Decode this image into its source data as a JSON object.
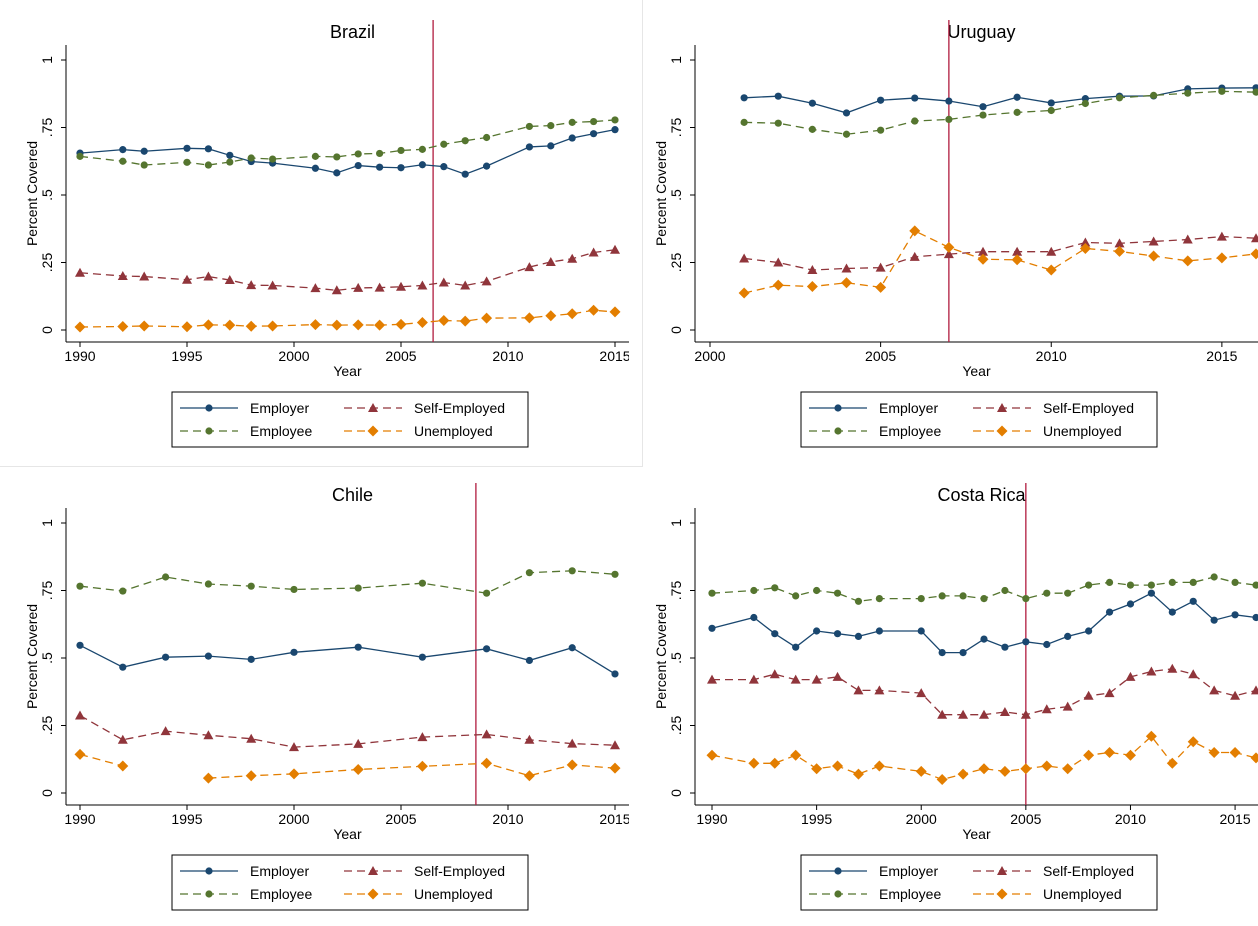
{
  "colors": {
    "employer": "#1a476f",
    "employee": "#55752f",
    "self_employed": "#90353b",
    "unemployed": "#e37e00",
    "reference_line": "#b01c3f"
  },
  "legend_labels": {
    "employer": "Employer",
    "self_employed": "Self-Employed",
    "employee": "Employee",
    "unemployed": "Unemployed"
  },
  "chart_data": [
    {
      "type": "line",
      "title": "Brazil",
      "xlabel": "Year",
      "ylabel": "Percent Covered",
      "xlim": [
        1990,
        2015
      ],
      "ylim": [
        0,
        1
      ],
      "xticks": [
        "1990",
        "1995",
        "2000",
        "2005",
        "2010",
        "2015"
      ],
      "yticks": [
        "0",
        ".25",
        ".5",
        ".75",
        "1"
      ],
      "reference_line_x": 2006.5,
      "x": [
        1990,
        1992,
        1993,
        1995,
        1996,
        1997,
        1998,
        1999,
        2001,
        2002,
        2003,
        2004,
        2005,
        2006,
        2007,
        2008,
        2009,
        2011,
        2012,
        2013,
        2014,
        2015
      ],
      "series": [
        {
          "name": "Employer",
          "values": [
            0.655,
            0.668,
            0.662,
            0.673,
            0.671,
            0.647,
            0.624,
            0.618,
            0.599,
            0.582,
            0.609,
            0.603,
            0.601,
            0.612,
            0.605,
            0.577,
            0.607,
            0.678,
            0.682,
            0.711,
            0.727,
            0.742
          ]
        },
        {
          "name": "Employee",
          "values": [
            0.643,
            0.625,
            0.611,
            0.621,
            0.611,
            0.622,
            0.637,
            0.633,
            0.643,
            0.641,
            0.652,
            0.654,
            0.665,
            0.669,
            0.688,
            0.701,
            0.713,
            0.754,
            0.757,
            0.769,
            0.772,
            0.778
          ]
        },
        {
          "name": "Self-Employed",
          "values": [
            0.212,
            0.2,
            0.198,
            0.186,
            0.198,
            0.185,
            0.166,
            0.165,
            0.155,
            0.147,
            0.156,
            0.157,
            0.16,
            0.165,
            0.176,
            0.165,
            0.18,
            0.233,
            0.252,
            0.264,
            0.287,
            0.297
          ]
        },
        {
          "name": "Unemployed",
          "values": [
            0.011,
            0.013,
            0.015,
            0.012,
            0.019,
            0.018,
            0.014,
            0.015,
            0.02,
            0.018,
            0.019,
            0.018,
            0.021,
            0.028,
            0.035,
            0.033,
            0.044,
            0.045,
            0.053,
            0.06,
            0.073,
            0.067
          ]
        }
      ]
    },
    {
      "type": "line",
      "title": "Uruguay",
      "xlabel": "Year",
      "ylabel": "Percent Covered",
      "xlim": [
        2000,
        2016
      ],
      "ylim": [
        0,
        1
      ],
      "xticks": [
        "2000",
        "2005",
        "2010",
        "2015"
      ],
      "yticks": [
        "0",
        ".25",
        ".5",
        ".75",
        "1"
      ],
      "reference_line_x": 2007,
      "x": [
        2001,
        2002,
        2003,
        2004,
        2005,
        2006,
        2007,
        2008,
        2009,
        2010,
        2011,
        2012,
        2013,
        2014,
        2015,
        2016
      ],
      "series": [
        {
          "name": "Employer",
          "values": [
            0.86,
            0.866,
            0.84,
            0.804,
            0.851,
            0.859,
            0.848,
            0.827,
            0.862,
            0.841,
            0.857,
            0.866,
            0.867,
            0.893,
            0.896,
            0.897
          ]
        },
        {
          "name": "Employee",
          "values": [
            0.769,
            0.766,
            0.743,
            0.725,
            0.74,
            0.774,
            0.78,
            0.796,
            0.806,
            0.813,
            0.839,
            0.86,
            0.869,
            0.877,
            0.884,
            0.881
          ]
        },
        {
          "name": "Self-Employed",
          "values": [
            0.265,
            0.25,
            0.222,
            0.228,
            0.231,
            0.271,
            0.281,
            0.29,
            0.29,
            0.29,
            0.324,
            0.321,
            0.328,
            0.335,
            0.346,
            0.34
          ]
        },
        {
          "name": "Unemployed",
          "values": [
            0.137,
            0.166,
            0.161,
            0.175,
            0.158,
            0.367,
            0.306,
            0.262,
            0.26,
            0.222,
            0.302,
            0.291,
            0.274,
            0.256,
            0.267,
            0.282
          ]
        }
      ]
    },
    {
      "type": "line",
      "title": "Chile",
      "xlabel": "Year",
      "ylabel": "Percent Covered",
      "xlim": [
        1990,
        2015
      ],
      "ylim": [
        0,
        1
      ],
      "xticks": [
        "1990",
        "1995",
        "2000",
        "2005",
        "2010",
        "2015"
      ],
      "yticks": [
        "0",
        ".25",
        ".5",
        ".75",
        "1"
      ],
      "reference_line_x": 2008.5,
      "x": [
        1990,
        1992,
        1994,
        1996,
        1998,
        2000,
        2003,
        2006,
        2009,
        2011,
        2013,
        2015
      ],
      "series": [
        {
          "name": "Employer",
          "values": [
            0.547,
            0.466,
            0.503,
            0.507,
            0.495,
            0.521,
            0.54,
            0.503,
            0.534,
            0.491,
            0.538,
            0.441
          ]
        },
        {
          "name": "Employee",
          "values": [
            0.766,
            0.748,
            0.8,
            0.774,
            0.766,
            0.754,
            0.759,
            0.777,
            0.74,
            0.816,
            0.823,
            0.81
          ]
        },
        {
          "name": "Self-Employed",
          "values": [
            0.287,
            0.197,
            0.229,
            0.214,
            0.201,
            0.17,
            0.182,
            0.207,
            0.217,
            0.197,
            0.183,
            0.177
          ]
        },
        {
          "name": "Unemployed",
          "values": [
            0.143,
            0.1,
            null,
            0.055,
            0.064,
            0.071,
            0.087,
            0.099,
            0.11,
            0.064,
            0.104,
            0.092
          ]
        }
      ]
    },
    {
      "type": "line",
      "title": "Costa Rica",
      "xlabel": "Year",
      "ylabel": "Percent Covered",
      "xlim": [
        1990,
        2016
      ],
      "ylim": [
        0,
        1
      ],
      "xticks": [
        "1990",
        "1995",
        "2000",
        "2005",
        "2010",
        "2015"
      ],
      "yticks": [
        "0",
        ".25",
        ".5",
        ".75",
        "1"
      ],
      "reference_line_x": 2005,
      "x": [
        1990,
        1992,
        1993,
        1994,
        1995,
        1996,
        1997,
        1998,
        2000,
        2001,
        2002,
        2003,
        2004,
        2005,
        2006,
        2007,
        2008,
        2009,
        2010,
        2011,
        2012,
        2013,
        2014,
        2015,
        2016
      ],
      "series": [
        {
          "name": "Employer",
          "values": [
            0.61,
            0.65,
            0.59,
            0.54,
            0.6,
            0.59,
            0.58,
            0.6,
            0.6,
            0.52,
            0.52,
            0.57,
            0.54,
            0.56,
            0.55,
            0.58,
            0.6,
            0.67,
            0.7,
            0.74,
            0.67,
            0.71,
            0.64,
            0.66,
            0.65
          ]
        },
        {
          "name": "Employee",
          "values": [
            0.74,
            0.75,
            0.76,
            0.73,
            0.75,
            0.74,
            0.71,
            0.72,
            0.72,
            0.73,
            0.73,
            0.72,
            0.75,
            0.72,
            0.74,
            0.74,
            0.77,
            0.78,
            0.77,
            0.77,
            0.78,
            0.78,
            0.8,
            0.78,
            0.77
          ]
        },
        {
          "name": "Self-Employed",
          "values": [
            0.42,
            0.42,
            0.44,
            0.42,
            0.42,
            0.43,
            0.38,
            0.38,
            0.37,
            0.29,
            0.29,
            0.29,
            0.3,
            0.29,
            0.31,
            0.32,
            0.36,
            0.37,
            0.43,
            0.45,
            0.46,
            0.44,
            0.38,
            0.36,
            0.38
          ]
        },
        {
          "name": "Unemployed",
          "values": [
            0.14,
            0.11,
            0.11,
            0.14,
            0.09,
            0.1,
            0.07,
            0.1,
            0.08,
            0.05,
            0.07,
            0.09,
            0.08,
            0.09,
            0.1,
            0.09,
            0.14,
            0.15,
            0.14,
            0.21,
            0.11,
            0.19,
            0.15,
            0.15,
            0.13
          ]
        }
      ]
    }
  ]
}
